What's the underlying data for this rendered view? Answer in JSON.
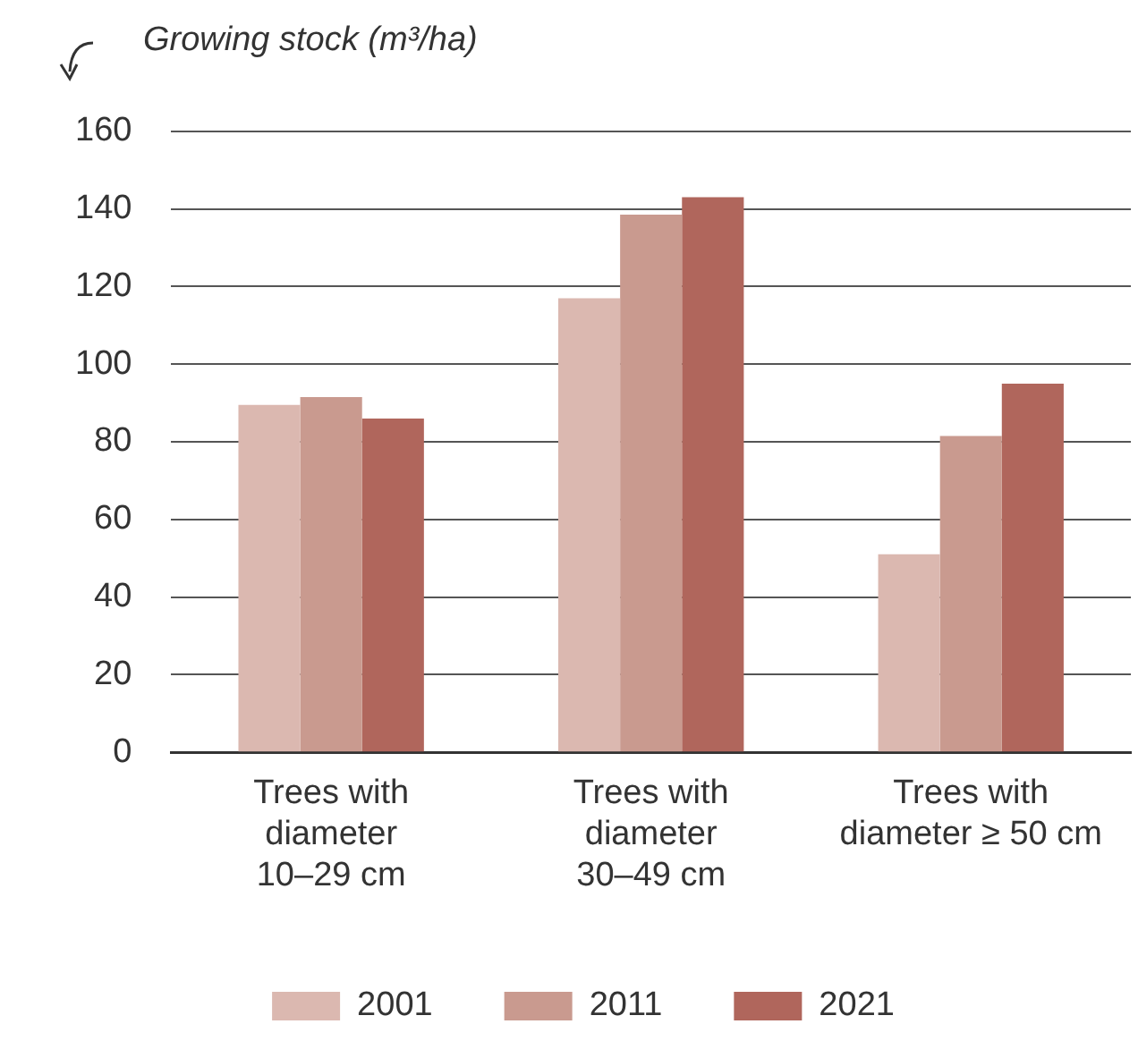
{
  "chart_data": {
    "type": "bar",
    "ylabel": "Growing stock (m³/ha)",
    "categories": [
      "Trees with\ndiameter\n10–29 cm",
      "Trees with\ndiameter\n30–49 cm",
      "Trees with\ndiameter ≥ 50 cm"
    ],
    "series": [
      {
        "name": "2001",
        "color": "#dbb8b0",
        "values": [
          89.5,
          117,
          51
        ]
      },
      {
        "name": "2011",
        "color": "#c99a8f",
        "values": [
          91.5,
          138.5,
          81.5
        ]
      },
      {
        "name": "2021",
        "color": "#b0665c",
        "values": [
          86,
          143,
          95
        ]
      }
    ],
    "ylim": [
      0,
      160
    ],
    "yticks": [
      0,
      20,
      40,
      60,
      80,
      100,
      120,
      140,
      160
    ],
    "grid": "y",
    "legend": "bottom"
  }
}
